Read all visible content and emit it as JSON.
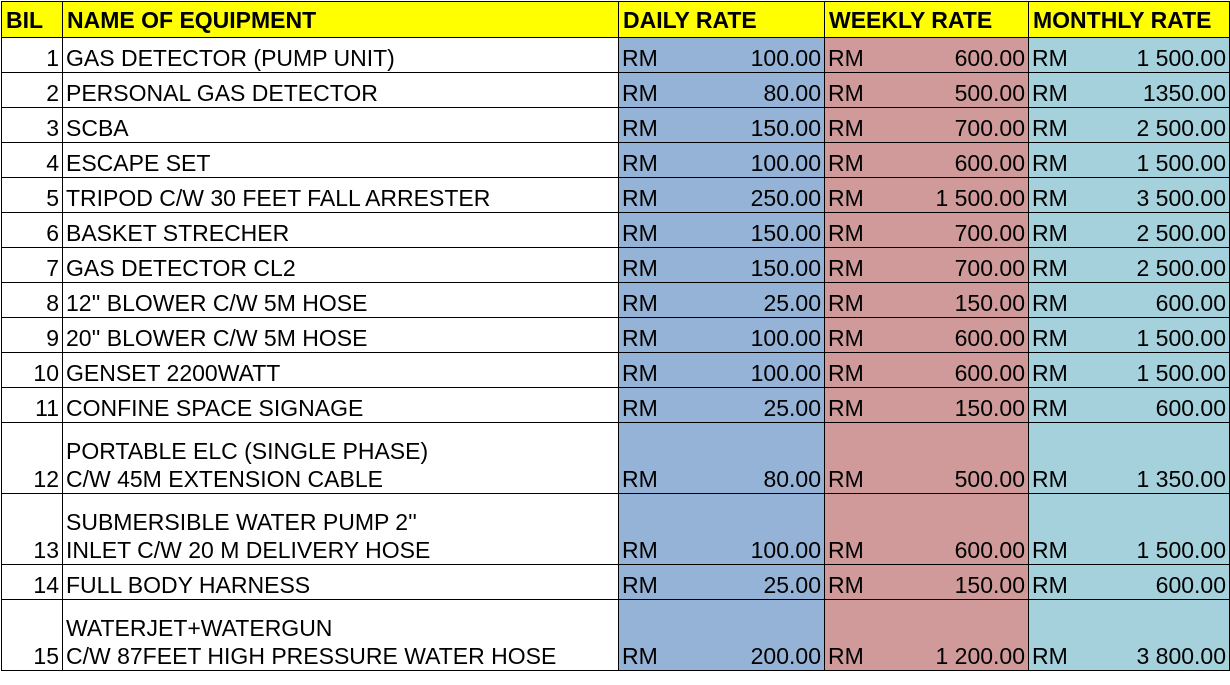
{
  "headers": {
    "bil": "BIL",
    "name": "NAME OF EQUIPMENT",
    "daily": "DAILY RATE",
    "weekly": "WEEKLY RATE",
    "monthly": "MONTHLY RATE"
  },
  "colors": {
    "header_bg": "#ffff00",
    "daily_bg": "#95b3d7",
    "weekly_bg": "#d09a9a",
    "monthly_bg": "#a4d1db"
  },
  "currency": "RM",
  "rows": [
    {
      "bil": "1",
      "name": [
        "GAS DETECTOR (PUMP UNIT)"
      ],
      "daily": "100.00",
      "weekly": "600.00",
      "monthly": "1 500.00"
    },
    {
      "bil": "2",
      "name": [
        "PERSONAL  GAS DETECTOR"
      ],
      "daily": "80.00",
      "weekly": "500.00",
      "monthly": "1350.00"
    },
    {
      "bil": "3",
      "name": [
        "SCBA"
      ],
      "daily": "150.00",
      "weekly": "700.00",
      "monthly": "2 500.00"
    },
    {
      "bil": "4",
      "name": [
        "ESCAPE SET"
      ],
      "daily": "100.00",
      "weekly": "600.00",
      "monthly": "1 500.00"
    },
    {
      "bil": "5",
      "name": [
        "TRIPOD C/W 30 FEET FALL ARRESTER"
      ],
      "daily": "250.00",
      "weekly": "1 500.00",
      "monthly": "3 500.00"
    },
    {
      "bil": "6",
      "name": [
        "BASKET STRECHER"
      ],
      "daily": "150.00",
      "weekly": "700.00",
      "monthly": "2 500.00"
    },
    {
      "bil": "7",
      "name": [
        "GAS DETECTOR CL2"
      ],
      "daily": "150.00",
      "weekly": "700.00",
      "monthly": "2 500.00"
    },
    {
      "bil": "8",
      "name": [
        "12'' BLOWER C/W 5M HOSE"
      ],
      "daily": "25.00",
      "weekly": "150.00",
      "monthly": "600.00"
    },
    {
      "bil": "9",
      "name": [
        "20'' BLOWER C/W 5M HOSE"
      ],
      "daily": "100.00",
      "weekly": "600.00",
      "monthly": "1 500.00"
    },
    {
      "bil": "10",
      "name": [
        "GENSET 2200WATT"
      ],
      "daily": "100.00",
      "weekly": "600.00",
      "monthly": "1 500.00"
    },
    {
      "bil": "11",
      "name": [
        "CONFINE SPACE SIGNAGE"
      ],
      "daily": "25.00",
      "weekly": "150.00",
      "monthly": "600.00"
    },
    {
      "bil": "12",
      "name": [
        "PORTABLE ELC (SINGLE PHASE)",
        "C/W 45M EXTENSION CABLE"
      ],
      "daily": "80.00",
      "weekly": "500.00",
      "monthly": "1 350.00"
    },
    {
      "bil": "13",
      "name": [
        "SUBMERSIBLE WATER PUMP 2''",
        "INLET C/W 20 M DELIVERY HOSE"
      ],
      "daily": "100.00",
      "weekly": "600.00",
      "monthly": "1 500.00"
    },
    {
      "bil": "14",
      "name": [
        "FULL BODY HARNESS"
      ],
      "daily": "25.00",
      "weekly": "150.00",
      "monthly": "600.00"
    },
    {
      "bil": "15",
      "name": [
        "WATERJET+WATERGUN",
        "C/W 87FEET HIGH PRESSURE WATER HOSE"
      ],
      "daily": "200.00",
      "weekly": "1 200.00",
      "monthly": "3 800.00"
    }
  ]
}
